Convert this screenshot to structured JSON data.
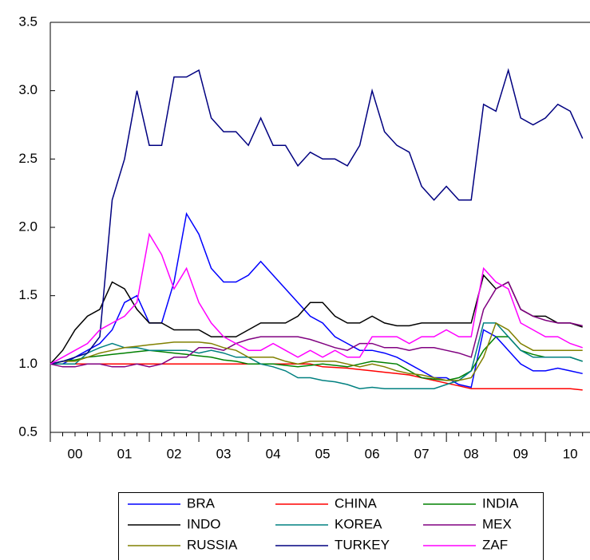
{
  "chart_data": {
    "type": "line",
    "x": [
      2000.0,
      2000.25,
      2000.5,
      2000.75,
      2001.0,
      2001.25,
      2001.5,
      2001.75,
      2002.0,
      2002.25,
      2002.5,
      2002.75,
      2003.0,
      2003.25,
      2003.5,
      2003.75,
      2004.0,
      2004.25,
      2004.5,
      2004.75,
      2005.0,
      2005.25,
      2005.5,
      2005.75,
      2006.0,
      2006.25,
      2006.5,
      2006.75,
      2007.0,
      2007.25,
      2007.5,
      2007.75,
      2008.0,
      2008.25,
      2008.5,
      2008.75,
      2009.0,
      2009.25,
      2009.5,
      2009.75,
      2010.0,
      2010.25,
      2010.5,
      2010.75
    ],
    "xlim": [
      2000.0,
      2010.9
    ],
    "xticks": [
      {
        "value": 2000.5,
        "label": "00"
      },
      {
        "value": 2001.5,
        "label": "01"
      },
      {
        "value": 2002.5,
        "label": "02"
      },
      {
        "value": 2003.5,
        "label": "03"
      },
      {
        "value": 2004.5,
        "label": "04"
      },
      {
        "value": 2005.5,
        "label": "05"
      },
      {
        "value": 2006.5,
        "label": "06"
      },
      {
        "value": 2007.5,
        "label": "07"
      },
      {
        "value": 2008.5,
        "label": "08"
      },
      {
        "value": 2009.5,
        "label": "09"
      },
      {
        "value": 2010.5,
        "label": "10"
      }
    ],
    "ylim": [
      0.5,
      3.5
    ],
    "yticks": [
      {
        "value": 0.5,
        "label": "0.5"
      },
      {
        "value": 1,
        "label": "1.0"
      },
      {
        "value": 1.5,
        "label": "1.5"
      },
      {
        "value": 2,
        "label": "2.0"
      },
      {
        "value": 2.5,
        "label": "2.5"
      },
      {
        "value": 3,
        "label": "3.0"
      },
      {
        "value": 3.5,
        "label": "3.5"
      }
    ],
    "grid": false,
    "legend": "bottom",
    "series": [
      {
        "name": "BRA",
        "color": "#0000ff",
        "values": [
          1.0,
          1.0,
          1.05,
          1.1,
          1.15,
          1.25,
          1.45,
          1.5,
          1.3,
          1.3,
          1.6,
          2.1,
          1.95,
          1.7,
          1.6,
          1.6,
          1.65,
          1.75,
          1.65,
          1.55,
          1.45,
          1.35,
          1.3,
          1.2,
          1.15,
          1.1,
          1.1,
          1.08,
          1.05,
          1.0,
          0.95,
          0.9,
          0.9,
          0.85,
          0.83,
          1.25,
          1.2,
          1.1,
          1.0,
          0.95,
          0.95,
          0.97,
          0.95,
          0.93
        ]
      },
      {
        "name": "CHINA",
        "color": "#ff0000",
        "values": [
          1.0,
          1.0,
          1.0,
          1.0,
          1.0,
          1.0,
          1.0,
          1.0,
          1.0,
          1.0,
          1.0,
          1.0,
          1.0,
          1.0,
          1.0,
          1.0,
          1.0,
          1.0,
          1.0,
          1.0,
          1.0,
          1.0,
          0.98,
          0.975,
          0.97,
          0.96,
          0.95,
          0.94,
          0.93,
          0.92,
          0.9,
          0.88,
          0.86,
          0.84,
          0.82,
          0.82,
          0.82,
          0.82,
          0.82,
          0.82,
          0.82,
          0.82,
          0.82,
          0.81
        ]
      },
      {
        "name": "INDIA",
        "color": "#008000",
        "values": [
          1.0,
          1.02,
          1.03,
          1.05,
          1.06,
          1.07,
          1.08,
          1.09,
          1.1,
          1.09,
          1.08,
          1.07,
          1.06,
          1.05,
          1.03,
          1.02,
          1.0,
          1.0,
          1.0,
          0.99,
          0.98,
          0.99,
          1.0,
          0.99,
          0.98,
          1.0,
          1.02,
          1.01,
          1.0,
          0.95,
          0.9,
          0.89,
          0.88,
          0.9,
          0.95,
          1.1,
          1.2,
          1.2,
          1.1,
          1.07,
          1.05,
          1.05,
          1.05,
          1.02
        ]
      },
      {
        "name": "INDO",
        "color": "#000000",
        "values": [
          1.0,
          1.1,
          1.25,
          1.35,
          1.4,
          1.6,
          1.55,
          1.4,
          1.3,
          1.3,
          1.25,
          1.25,
          1.25,
          1.2,
          1.2,
          1.2,
          1.25,
          1.3,
          1.3,
          1.3,
          1.35,
          1.45,
          1.45,
          1.35,
          1.3,
          1.3,
          1.35,
          1.3,
          1.28,
          1.28,
          1.3,
          1.3,
          1.3,
          1.3,
          1.3,
          1.65,
          1.55,
          1.6,
          1.4,
          1.35,
          1.35,
          1.3,
          1.3,
          1.27
        ]
      },
      {
        "name": "KOREA",
        "color": "#008080",
        "values": [
          1.0,
          1.0,
          1.0,
          1.08,
          1.12,
          1.15,
          1.12,
          1.12,
          1.1,
          1.1,
          1.1,
          1.1,
          1.08,
          1.1,
          1.08,
          1.05,
          1.05,
          1.0,
          0.98,
          0.95,
          0.9,
          0.9,
          0.88,
          0.87,
          0.85,
          0.82,
          0.83,
          0.82,
          0.82,
          0.82,
          0.82,
          0.82,
          0.85,
          0.88,
          0.95,
          1.3,
          1.3,
          1.2,
          1.1,
          1.05,
          1.05,
          1.05,
          1.05,
          1.02
        ]
      },
      {
        "name": "MEX",
        "color": "#800080",
        "values": [
          1.0,
          0.98,
          0.98,
          1.0,
          1.0,
          0.98,
          0.98,
          1.0,
          0.98,
          1.0,
          1.05,
          1.05,
          1.12,
          1.12,
          1.1,
          1.15,
          1.18,
          1.2,
          1.2,
          1.2,
          1.2,
          1.18,
          1.15,
          1.12,
          1.1,
          1.15,
          1.15,
          1.12,
          1.12,
          1.1,
          1.12,
          1.12,
          1.1,
          1.08,
          1.05,
          1.4,
          1.55,
          1.6,
          1.4,
          1.35,
          1.32,
          1.3,
          1.3,
          1.28
        ]
      },
      {
        "name": "RUSSIA",
        "color": "#808000",
        "values": [
          1.0,
          1.02,
          1.02,
          1.05,
          1.08,
          1.1,
          1.12,
          1.13,
          1.14,
          1.15,
          1.16,
          1.16,
          1.16,
          1.15,
          1.12,
          1.1,
          1.05,
          1.05,
          1.05,
          1.02,
          1.0,
          1.02,
          1.02,
          1.02,
          1.0,
          0.98,
          1.0,
          0.98,
          0.95,
          0.93,
          0.92,
          0.9,
          0.88,
          0.88,
          0.9,
          1.05,
          1.3,
          1.25,
          1.15,
          1.1,
          1.1,
          1.1,
          1.1,
          1.1
        ]
      },
      {
        "name": "TURKEY",
        "color": "#000080",
        "values": [
          1.0,
          1.02,
          1.05,
          1.08,
          1.2,
          2.2,
          2.5,
          3.0,
          2.6,
          2.6,
          3.1,
          3.1,
          3.15,
          2.8,
          2.7,
          2.7,
          2.6,
          2.8,
          2.6,
          2.6,
          2.45,
          2.55,
          2.5,
          2.5,
          2.45,
          2.6,
          3.0,
          2.7,
          2.6,
          2.55,
          2.3,
          2.2,
          2.3,
          2.2,
          2.2,
          2.9,
          2.85,
          3.15,
          2.8,
          2.75,
          2.8,
          2.9,
          2.85,
          2.65
        ]
      },
      {
        "name": "ZAF",
        "color": "#ff00ff",
        "values": [
          1.0,
          1.05,
          1.1,
          1.15,
          1.25,
          1.3,
          1.35,
          1.45,
          1.95,
          1.8,
          1.55,
          1.7,
          1.45,
          1.3,
          1.2,
          1.15,
          1.1,
          1.1,
          1.15,
          1.1,
          1.05,
          1.1,
          1.05,
          1.1,
          1.05,
          1.05,
          1.2,
          1.2,
          1.2,
          1.15,
          1.2,
          1.2,
          1.25,
          1.2,
          1.2,
          1.7,
          1.6,
          1.55,
          1.3,
          1.25,
          1.2,
          1.2,
          1.15,
          1.12
        ]
      }
    ]
  }
}
